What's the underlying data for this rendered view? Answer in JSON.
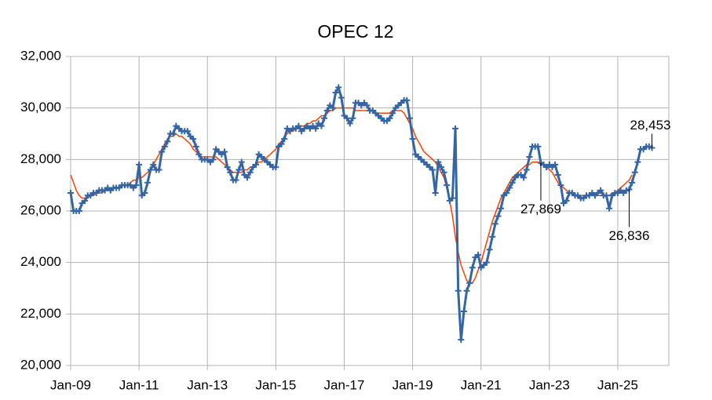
{
  "chart_data": {
    "type": "line",
    "title": "OPEC 12",
    "categories": [
      "Jan-09",
      null,
      null,
      null,
      null,
      null,
      null,
      null,
      null,
      null,
      null,
      null,
      null,
      null,
      null,
      null,
      null,
      null,
      null,
      null,
      null,
      null,
      null,
      null,
      "Jan-11",
      null,
      null,
      null,
      null,
      null,
      null,
      null,
      null,
      null,
      null,
      null,
      null,
      null,
      null,
      null,
      null,
      null,
      null,
      null,
      null,
      null,
      null,
      null,
      "Jan-13",
      null,
      null,
      null,
      null,
      null,
      null,
      null,
      null,
      null,
      null,
      null,
      null,
      null,
      null,
      null,
      null,
      null,
      null,
      null,
      null,
      null,
      null,
      null,
      "Jan-15",
      null,
      null,
      null,
      null,
      null,
      null,
      null,
      null,
      null,
      null,
      null,
      null,
      null,
      null,
      null,
      null,
      null,
      null,
      null,
      null,
      null,
      null,
      null,
      "Jan-17",
      null,
      null,
      null,
      null,
      null,
      null,
      null,
      null,
      null,
      null,
      null,
      null,
      null,
      null,
      null,
      null,
      null,
      null,
      null,
      null,
      null,
      null,
      null,
      "Jan-19",
      null,
      null,
      null,
      null,
      null,
      null,
      null,
      null,
      null,
      null,
      null,
      null,
      null,
      null,
      null,
      null,
      null,
      null,
      null,
      null,
      null,
      null,
      null,
      "Jan-21",
      null,
      null,
      null,
      null,
      null,
      null,
      null,
      null,
      null,
      null,
      null,
      null,
      null,
      null,
      null,
      null,
      null,
      null,
      null,
      null,
      null,
      null,
      null,
      "Jan-23",
      null,
      null,
      null,
      null,
      null,
      null,
      null,
      null,
      null,
      null,
      null,
      null,
      null,
      null,
      null,
      null,
      null,
      null,
      null,
      null,
      null,
      null,
      null,
      "Jan-25",
      null,
      null,
      null,
      null,
      null,
      null,
      null,
      null,
      null,
      null,
      null,
      null
    ],
    "series": [
      {
        "color": "#3465a4",
        "values": [
          26700,
          26000,
          26000,
          26000,
          26300,
          26400,
          26600,
          26600,
          26700,
          26700,
          26800,
          26800,
          26800,
          26900,
          26800,
          26900,
          26900,
          26900,
          27000,
          27000,
          27000,
          27000,
          26900,
          27000,
          27800,
          26600,
          26700,
          27100,
          27600,
          27800,
          27600,
          27600,
          28300,
          28500,
          28700,
          29000,
          29000,
          29300,
          29200,
          29100,
          29100,
          29100,
          28900,
          28800,
          28500,
          28200,
          28000,
          28000,
          28000,
          27900,
          28000,
          28400,
          28300,
          28200,
          28300,
          27700,
          27500,
          27200,
          27200,
          27600,
          27900,
          27400,
          27300,
          27500,
          27700,
          27800,
          28200,
          28100,
          28000,
          27900,
          27800,
          27700,
          27700,
          28500,
          28600,
          28800,
          29200,
          29100,
          29200,
          29200,
          29300,
          29100,
          29200,
          29300,
          29200,
          29300,
          29200,
          29400,
          29300,
          29600,
          29900,
          30100,
          30000,
          30600,
          30800,
          30400,
          29700,
          29600,
          29400,
          29600,
          30200,
          30200,
          30100,
          30200,
          30100,
          29900,
          29900,
          29800,
          29700,
          29600,
          29500,
          29500,
          29600,
          29800,
          30000,
          30100,
          30200,
          30300,
          30300,
          29600,
          28800,
          28200,
          28100,
          28000,
          27900,
          27800,
          27700,
          27600,
          26700,
          27900,
          27700,
          27500,
          27000,
          26400,
          26500,
          29200,
          22900,
          21000,
          22100,
          22900,
          23200,
          23800,
          24200,
          24300,
          23800,
          23900,
          24000,
          24500,
          25000,
          25500,
          25800,
          26100,
          26600,
          26700,
          26900,
          27100,
          27300,
          27400,
          27400,
          27300,
          27600,
          28100,
          28500,
          28500,
          28500,
          27869,
          27800,
          27700,
          27800,
          27700,
          27800,
          27400,
          27000,
          26300,
          26400,
          26700,
          26700,
          26600,
          26600,
          26500,
          26500,
          26600,
          26600,
          26700,
          26600,
          26700,
          26800,
          26600,
          26600,
          26100,
          26600,
          26700,
          26700,
          26800,
          26700,
          26800,
          26836,
          27100,
          27500,
          27900,
          28400,
          28400,
          28500,
          28500,
          28453
        ],
        "value_labels": [
          null,
          null,
          null,
          null,
          null,
          null,
          null,
          null,
          null,
          null,
          null,
          null,
          null,
          null,
          null,
          null,
          null,
          null,
          null,
          null,
          null,
          null,
          null,
          null,
          null,
          null,
          null,
          null,
          null,
          null,
          null,
          null,
          null,
          null,
          null,
          null,
          null,
          null,
          null,
          null,
          null,
          null,
          null,
          null,
          null,
          null,
          null,
          null,
          null,
          null,
          null,
          null,
          null,
          null,
          null,
          null,
          null,
          null,
          null,
          null,
          null,
          null,
          null,
          null,
          null,
          null,
          null,
          null,
          null,
          null,
          null,
          null,
          null,
          null,
          null,
          null,
          null,
          null,
          null,
          null,
          null,
          null,
          null,
          null,
          null,
          null,
          null,
          null,
          null,
          null,
          null,
          null,
          null,
          null,
          null,
          null,
          null,
          null,
          null,
          null,
          null,
          null,
          null,
          null,
          null,
          null,
          null,
          null,
          null,
          null,
          null,
          null,
          null,
          null,
          null,
          null,
          null,
          null,
          null,
          null,
          null,
          null,
          null,
          null,
          null,
          null,
          null,
          null,
          null,
          null,
          null,
          null,
          null,
          null,
          null,
          null,
          null,
          null,
          null,
          null,
          null,
          null,
          null,
          null,
          null,
          null,
          null,
          null,
          null,
          null,
          null,
          null,
          null,
          null,
          null,
          null,
          null,
          null,
          null,
          null,
          null,
          null,
          null,
          null,
          null,
          "27,869",
          null,
          null,
          null,
          null,
          null,
          null,
          null,
          null,
          null,
          null,
          null,
          null,
          null,
          null,
          null,
          null,
          null,
          null,
          null,
          null,
          null,
          null,
          null,
          null,
          null,
          null,
          null,
          null,
          null,
          null,
          "26,836",
          null,
          null,
          null,
          null,
          null,
          null,
          null,
          "28,453"
        ]
      },
      {
        "color": "#ff4000",
        "values": [
          27400,
          27100,
          26800,
          26600,
          26500,
          26500,
          26500,
          26600,
          26600,
          26700,
          26700,
          26700,
          26800,
          26800,
          26800,
          26900,
          26900,
          26900,
          27000,
          27000,
          27000,
          27100,
          27200,
          27200,
          27300,
          27300,
          27400,
          27500,
          27600,
          27800,
          28000,
          28200,
          28400,
          28600,
          28800,
          28900,
          28900,
          29000,
          28900,
          28900,
          28800,
          28700,
          28600,
          28400,
          28300,
          28200,
          28100,
          28100,
          28100,
          28100,
          28100,
          28100,
          28000,
          27900,
          27800,
          27700,
          27600,
          27500,
          27500,
          27500,
          27500,
          27600,
          27600,
          27700,
          27700,
          27800,
          27900,
          27900,
          28000,
          28100,
          28200,
          28300,
          28400,
          28600,
          28700,
          28900,
          29000,
          29100,
          29100,
          29200,
          29200,
          29300,
          29300,
          29400,
          29400,
          29500,
          29500,
          29600,
          29700,
          29700,
          29800,
          29900,
          29900,
          30000,
          30000,
          30000,
          30000,
          30000,
          30000,
          30000,
          29900,
          29900,
          29900,
          29900,
          29900,
          29900,
          29900,
          29800,
          29800,
          29800,
          29800,
          29800,
          29800,
          29900,
          29900,
          29900,
          29900,
          29800,
          29600,
          29400,
          29200,
          28900,
          28700,
          28500,
          28300,
          28200,
          28100,
          28000,
          27900,
          27700,
          27500,
          27300,
          26900,
          26400,
          25800,
          25000,
          24400,
          23900,
          23600,
          23300,
          23200,
          23200,
          23400,
          23700,
          24000,
          24400,
          24800,
          25200,
          25600,
          25900,
          26200,
          26500,
          26700,
          26900,
          27100,
          27300,
          27400,
          27500,
          27600,
          27700,
          27800,
          27800,
          27900,
          27900,
          27900,
          27800,
          27800,
          27700,
          27600,
          27500,
          27300,
          27100,
          27000,
          26900,
          26800,
          26700,
          26700,
          26600,
          26600,
          26600,
          26600,
          26600,
          26600,
          26600,
          26600,
          26600,
          26600,
          26600,
          26600,
          26600,
          26700,
          26700,
          26800,
          26900,
          27000,
          27100,
          27200,
          27400,
          null,
          null,
          null,
          null,
          null,
          null,
          null
        ]
      }
    ],
    "ylim": [
      20000,
      32000
    ],
    "yticks": [
      {
        "value": 20000,
        "label": "20,000"
      },
      {
        "value": 22000,
        "label": "22,000"
      },
      {
        "value": 24000,
        "label": "24,000"
      },
      {
        "value": 26000,
        "label": "26,000"
      },
      {
        "value": 28000,
        "label": "28,000"
      },
      {
        "value": 30000,
        "label": "30,000"
      },
      {
        "value": 32000,
        "label": "32,000"
      }
    ],
    "grid": true
  }
}
